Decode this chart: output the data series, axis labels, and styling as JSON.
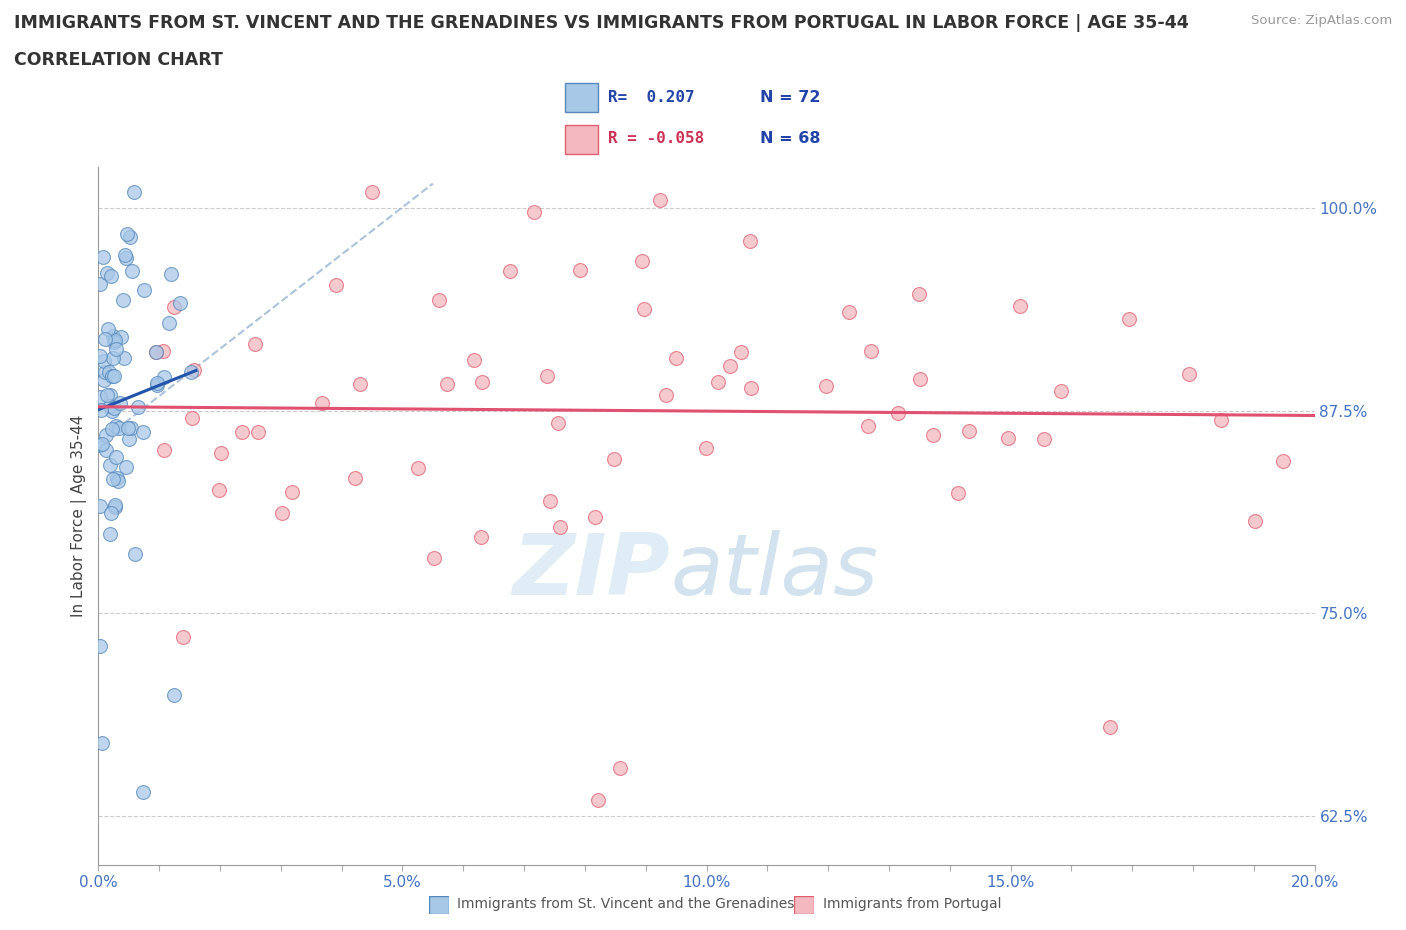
{
  "title_line1": "IMMIGRANTS FROM ST. VINCENT AND THE GRENADINES VS IMMIGRANTS FROM PORTUGAL IN LABOR FORCE | AGE 35-44",
  "title_line2": "CORRELATION CHART",
  "source_text": "Source: ZipAtlas.com",
  "ylabel": "In Labor Force | Age 35-44",
  "xlim": [
    0.0,
    0.2
  ],
  "ylim": [
    0.595,
    1.025
  ],
  "xtick_labels": [
    "0.0%",
    "",
    "",
    "",
    "",
    "5.0%",
    "",
    "",
    "",
    "",
    "10.0%",
    "",
    "",
    "",
    "",
    "15.0%",
    "",
    "",
    "",
    "",
    "20.0%"
  ],
  "xtick_values": [
    0.0,
    0.01,
    0.02,
    0.03,
    0.04,
    0.05,
    0.06,
    0.07,
    0.08,
    0.09,
    0.1,
    0.11,
    0.12,
    0.13,
    0.14,
    0.15,
    0.16,
    0.17,
    0.18,
    0.19,
    0.2
  ],
  "ytick_labels": [
    "62.5%",
    "75.0%",
    "87.5%",
    "100.0%"
  ],
  "ytick_values": [
    0.625,
    0.75,
    0.875,
    1.0
  ],
  "blue_color": "#a8c8e8",
  "pink_color": "#f4b8c0",
  "blue_edge": "#5588bb",
  "pink_edge": "#e06070",
  "blue_line_color": "#2255aa",
  "pink_line_color": "#e05070",
  "dash_line_color": "#88aacc",
  "r_blue": 0.207,
  "n_blue": 72,
  "r_pink": -0.058,
  "n_pink": 68,
  "watermark_zip": "ZIP",
  "watermark_atlas": "atlas",
  "legend_blue_r": "R=  0.207",
  "legend_blue_n": "N = 72",
  "legend_pink_r": "R = -0.058",
  "legend_pink_n": "N = 68"
}
